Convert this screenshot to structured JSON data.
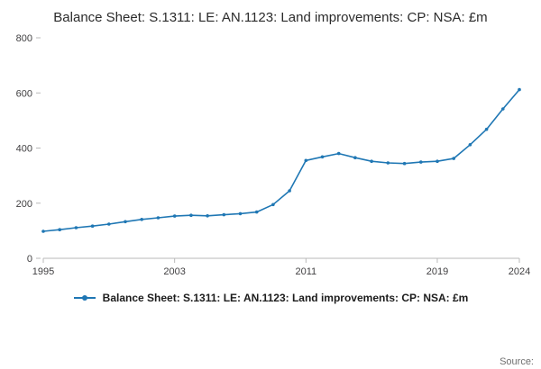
{
  "title": "Balance Sheet: S.1311: LE: AN.1123: Land improvements: CP: NSA: £m",
  "legend": {
    "label": "Balance Sheet: S.1311: LE: AN.1123: Land improvements: CP: NSA: £m"
  },
  "source": "Source:",
  "chart_data": {
    "type": "line",
    "title": "Balance Sheet: S.1311: LE: AN.1123: Land improvements: CP: NSA: £m",
    "xlabel": "",
    "ylabel": "",
    "x": [
      1995,
      1996,
      1997,
      1998,
      1999,
      2000,
      2001,
      2002,
      2003,
      2004,
      2005,
      2006,
      2007,
      2008,
      2009,
      2010,
      2011,
      2012,
      2013,
      2014,
      2015,
      2016,
      2017,
      2018,
      2019,
      2020,
      2021,
      2022,
      2023,
      2024
    ],
    "series": [
      {
        "name": "Balance Sheet: S.1311: LE: AN.1123: Land improvements: CP: NSA: £m",
        "values": [
          98,
          104,
          111,
          117,
          124,
          133,
          141,
          147,
          153,
          156,
          154,
          158,
          162,
          168,
          195,
          245,
          355,
          368,
          380,
          365,
          352,
          346,
          344,
          349,
          352,
          362,
          412,
          468,
          542,
          612
        ]
      }
    ],
    "ylim": [
      0,
      800
    ],
    "yticks": [
      0,
      200,
      400,
      600,
      800
    ],
    "xticks": [
      1995,
      2003,
      2011,
      2019,
      2024
    ],
    "line_color": "#1f77b4",
    "axis_color": "#b9b9b9",
    "grid": "off",
    "legend_position": "bottom"
  }
}
